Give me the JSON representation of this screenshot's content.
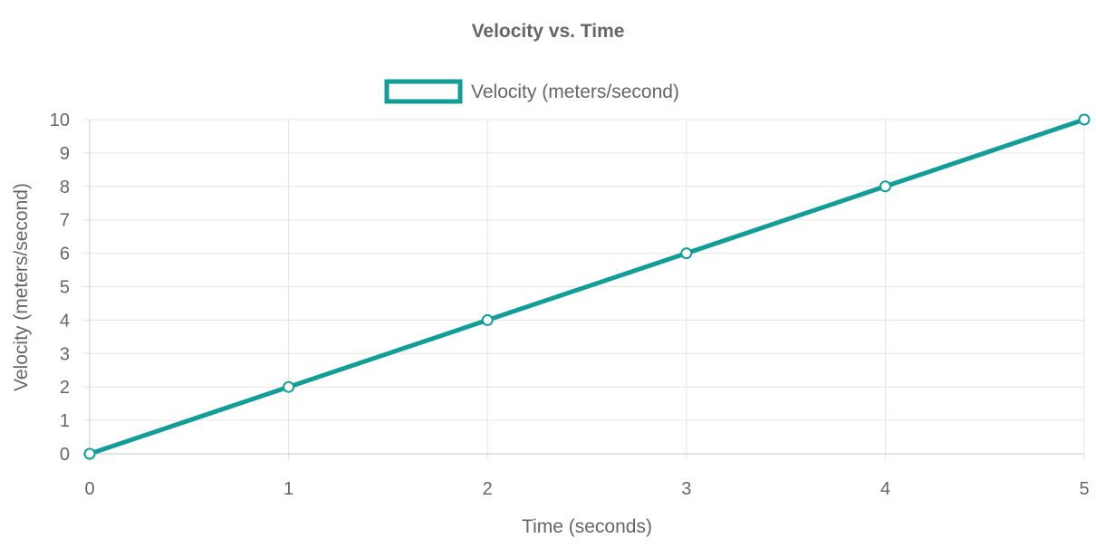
{
  "chart_data": {
    "type": "line",
    "title": "Velocity vs. Time",
    "xlabel": "Time (seconds)",
    "ylabel": "Velocity (meters/second)",
    "x": [
      0,
      1,
      2,
      3,
      4,
      5
    ],
    "series": [
      {
        "name": "Velocity (meters/second)",
        "values": [
          0,
          2,
          4,
          6,
          8,
          10
        ],
        "color": "#129d97"
      }
    ],
    "xlim": [
      0,
      5
    ],
    "ylim": [
      0,
      10
    ],
    "x_ticks": [
      "0",
      "1",
      "2",
      "3",
      "4",
      "5"
    ],
    "y_ticks": [
      "0",
      "1",
      "2",
      "3",
      "4",
      "5",
      "6",
      "7",
      "8",
      "9",
      "10"
    ],
    "grid": true,
    "legend_position": "top-center"
  }
}
